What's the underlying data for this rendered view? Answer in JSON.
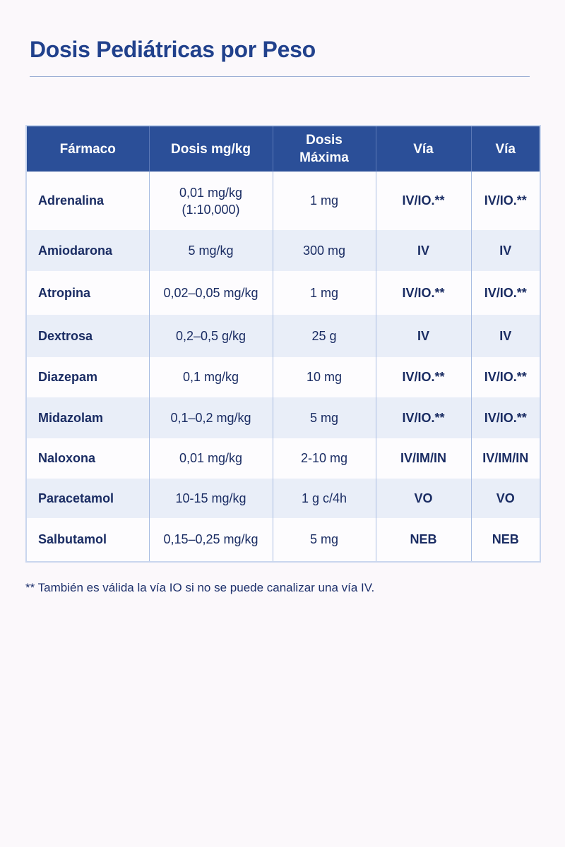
{
  "title": "Dosis Pediátricas por Peso",
  "table": {
    "headers": [
      "Fármaco",
      "Dosis mg/kg",
      "Dosis Máxima",
      "Vía",
      "Vía"
    ],
    "rows": [
      [
        "Adrenalina",
        "0,01 mg/kg (1:10,000)",
        "1 mg",
        "IV/IO.**",
        "IV/IO.**"
      ],
      [
        "Amiodarona",
        "5 mg/kg",
        "300 mg",
        "IV",
        "IV"
      ],
      [
        "Atropina",
        "0,02–0,05 mg/kg",
        "1 mg",
        "IV/IO.**",
        "IV/IO.**"
      ],
      [
        "Dextrosa",
        "0,2–0,5 g/kg",
        "25 g",
        "IV",
        "IV"
      ],
      [
        "Diazepam",
        "0,1 mg/kg",
        "10 mg",
        "IV/IO.**",
        "IV/IO.**"
      ],
      [
        "Midazolam",
        "0,1–0,2 mg/kg",
        "5 mg",
        "IV/IO.**",
        "IV/IO.**"
      ],
      [
        "Naloxona",
        "0,01 mg/kg",
        "2-10 mg",
        "IV/IM/IN",
        "IV/IM/IN"
      ],
      [
        "Paracetamol",
        "10-15 mg/kg",
        "1 g c/4h",
        "VO",
        "VO"
      ],
      [
        "Salbutamol",
        "0,15–0,25 mg/kg",
        "5 mg",
        "NEB",
        "NEB"
      ]
    ]
  },
  "footnote": "** También es válida la vía IO si no se puede canalizar una vía IV.",
  "colors": {
    "header": "#2b4f98",
    "title": "#21418c",
    "stripe": "#e9eef8"
  }
}
